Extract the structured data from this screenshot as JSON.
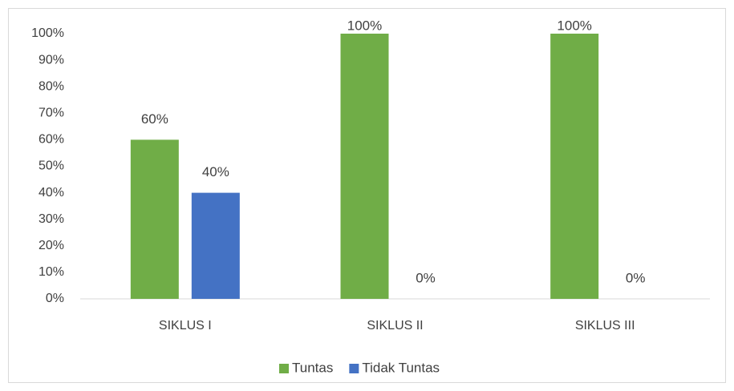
{
  "chart_data": {
    "type": "bar",
    "categories": [
      "SIKLUS I",
      "SIKLUS II",
      "SIKLUS III"
    ],
    "series": [
      {
        "name": "Tuntas",
        "color": "#70ad47",
        "values": [
          60,
          100,
          100
        ],
        "value_labels": [
          "60%",
          "100%",
          "100%"
        ]
      },
      {
        "name": "Tidak Tuntas",
        "color": "#4472c4",
        "values": [
          40,
          0,
          0
        ],
        "value_labels": [
          "40%",
          "0%",
          "0%"
        ]
      }
    ],
    "ylim": [
      0,
      100
    ],
    "yticks": [
      {
        "value": 0,
        "label": "0%"
      },
      {
        "value": 10,
        "label": "10%"
      },
      {
        "value": 20,
        "label": "20%"
      },
      {
        "value": 30,
        "label": "30%"
      },
      {
        "value": 40,
        "label": "40%"
      },
      {
        "value": 50,
        "label": "50%"
      },
      {
        "value": 60,
        "label": "60%"
      },
      {
        "value": 70,
        "label": "70%"
      },
      {
        "value": 80,
        "label": "80%"
      },
      {
        "value": 90,
        "label": "90%"
      },
      {
        "value": 100,
        "label": "100%"
      }
    ],
    "grid": false,
    "legend": "bottom"
  }
}
